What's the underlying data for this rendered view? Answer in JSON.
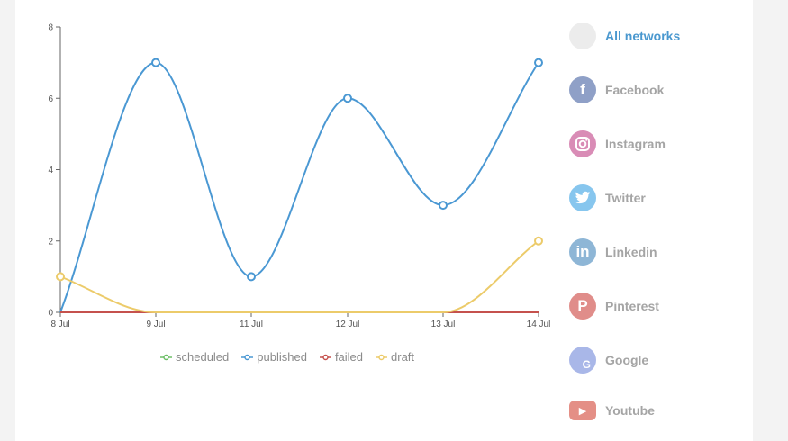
{
  "chart_data": {
    "type": "line",
    "categories": [
      "8 Jul",
      "9 Jul",
      "11 Jul",
      "12 Jul",
      "13 Jul",
      "14 Jul"
    ],
    "yticks": [
      0,
      2,
      4,
      6,
      8
    ],
    "ylim": [
      0,
      8
    ],
    "grid": false,
    "legend_position": "bottom",
    "series": [
      {
        "name": "scheduled",
        "color": "#6dbf67",
        "values": [
          0,
          0,
          0,
          0,
          0,
          0
        ]
      },
      {
        "name": "published",
        "color": "#4a98d3",
        "values": [
          0,
          7,
          1,
          6,
          3,
          7
        ]
      },
      {
        "name": "failed",
        "color": "#c5514d",
        "values": [
          0,
          0,
          0,
          0,
          0,
          0
        ]
      },
      {
        "name": "draft",
        "color": "#eccb6a",
        "values": [
          1,
          0,
          0,
          0,
          0,
          2
        ]
      }
    ]
  },
  "networks": [
    {
      "label": "All networks",
      "icon": "all-networks-icon",
      "color": "#ececec",
      "glyph": "",
      "active": true
    },
    {
      "label": "Facebook",
      "icon": "facebook-icon",
      "color": "#8fa0c7",
      "glyph": "f",
      "active": false
    },
    {
      "label": "Instagram",
      "icon": "instagram-icon",
      "color": "#d98cb6",
      "glyph": "",
      "active": false
    },
    {
      "label": "Twitter",
      "icon": "twitter-icon",
      "color": "#87c6ee",
      "glyph": "",
      "active": false
    },
    {
      "label": "Linkedin",
      "icon": "linkedin-icon",
      "color": "#8eb6d6",
      "glyph": "in",
      "active": false
    },
    {
      "label": "Pinterest",
      "icon": "pinterest-icon",
      "color": "#e08d8a",
      "glyph": "P",
      "active": false
    },
    {
      "label": "Google",
      "icon": "google-icon",
      "color": "#a9b7e8",
      "glyph": "G",
      "active": false
    },
    {
      "label": "Youtube",
      "icon": "youtube-icon",
      "color": "#e48f86",
      "glyph": "▶",
      "active": false
    }
  ]
}
